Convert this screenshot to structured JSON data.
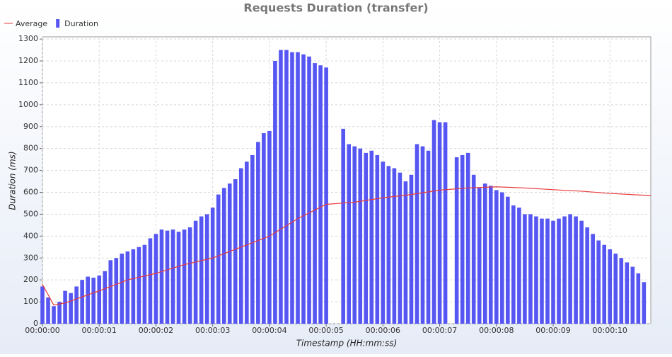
{
  "chart_data": {
    "type": "bar",
    "title": "Requests Duration (transfer)",
    "x_label": "Timestamp (HH:mm:ss)",
    "y_label": "Duration (ms)",
    "xlim": [
      0,
      10.72
    ],
    "ylim": [
      0,
      1310
    ],
    "xticks": [
      {
        "value": 0,
        "label": "00:00:00"
      },
      {
        "value": 1,
        "label": "00:00:01"
      },
      {
        "value": 2,
        "label": "00:00:02"
      },
      {
        "value": 3,
        "label": "00:00:03"
      },
      {
        "value": 4,
        "label": "00:00:04"
      },
      {
        "value": 5,
        "label": "00:00:05"
      },
      {
        "value": 6,
        "label": "00:00:06"
      },
      {
        "value": 7,
        "label": "00:00:07"
      },
      {
        "value": 8,
        "label": "00:00:08"
      },
      {
        "value": 9,
        "label": "00:00:09"
      },
      {
        "value": 10,
        "label": "00:00:10"
      }
    ],
    "yticks": [
      0,
      100,
      200,
      300,
      400,
      500,
      600,
      700,
      800,
      900,
      1000,
      1100,
      1200,
      1300
    ],
    "grid": true,
    "legend": "top-left",
    "series": [
      {
        "name": "Average",
        "type": "line",
        "color": "#e8393a",
        "x": [
          0,
          0.2,
          0.4,
          1.0,
          1.5,
          2.0,
          2.5,
          3.0,
          3.5,
          4.0,
          4.5,
          5.0,
          5.5,
          6.0,
          6.5,
          7.0,
          7.5,
          8.0,
          8.5,
          9.0,
          9.5,
          10.0,
          10.72
        ],
        "values": [
          180,
          85,
          95,
          150,
          200,
          230,
          270,
          300,
          350,
          400,
          480,
          545,
          555,
          575,
          590,
          610,
          620,
          625,
          620,
          612,
          605,
          595,
          585
        ]
      },
      {
        "name": "Duration",
        "type": "bar",
        "color": "#5656f2",
        "x": [
          0.0,
          0.1,
          0.2,
          0.3,
          0.4,
          0.5,
          0.6,
          0.7,
          0.8,
          0.9,
          1.0,
          1.1,
          1.2,
          1.3,
          1.4,
          1.5,
          1.6,
          1.7,
          1.8,
          1.9,
          2.0,
          2.1,
          2.2,
          2.3,
          2.4,
          2.5,
          2.6,
          2.7,
          2.8,
          2.9,
          3.0,
          3.1,
          3.2,
          3.3,
          3.4,
          3.5,
          3.6,
          3.7,
          3.8,
          3.9,
          4.0,
          4.1,
          4.2,
          4.3,
          4.4,
          4.5,
          4.6,
          4.7,
          4.8,
          4.9,
          5.0,
          5.3,
          5.4,
          5.5,
          5.6,
          5.7,
          5.8,
          5.9,
          6.0,
          6.1,
          6.2,
          6.3,
          6.4,
          6.5,
          6.6,
          6.7,
          6.8,
          6.9,
          7.0,
          7.1,
          7.3,
          7.4,
          7.5,
          7.6,
          7.7,
          7.8,
          7.9,
          8.0,
          8.1,
          8.2,
          8.3,
          8.4,
          8.5,
          8.6,
          8.7,
          8.8,
          8.9,
          9.0,
          9.1,
          9.2,
          9.3,
          9.4,
          9.5,
          9.6,
          9.7,
          9.8,
          9.9,
          10.0,
          10.1,
          10.2,
          10.3,
          10.4,
          10.5,
          10.6
        ],
        "values": [
          170,
          120,
          80,
          100,
          150,
          140,
          170,
          200,
          215,
          210,
          220,
          240,
          290,
          300,
          320,
          330,
          340,
          350,
          360,
          390,
          410,
          430,
          425,
          430,
          420,
          430,
          440,
          470,
          490,
          500,
          530,
          590,
          620,
          640,
          660,
          710,
          740,
          770,
          830,
          870,
          880,
          1200,
          1250,
          1250,
          1240,
          1240,
          1230,
          1220,
          1190,
          1180,
          1170,
          890,
          820,
          810,
          800,
          780,
          790,
          770,
          740,
          720,
          710,
          690,
          650,
          680,
          820,
          810,
          790,
          930,
          920,
          920,
          760,
          770,
          780,
          680,
          620,
          640,
          630,
          610,
          600,
          580,
          540,
          530,
          500,
          500,
          490,
          480,
          480,
          470,
          480,
          490,
          500,
          490,
          470,
          440,
          410,
          380,
          360,
          340,
          320,
          300,
          280,
          260,
          230,
          190
        ]
      }
    ]
  }
}
